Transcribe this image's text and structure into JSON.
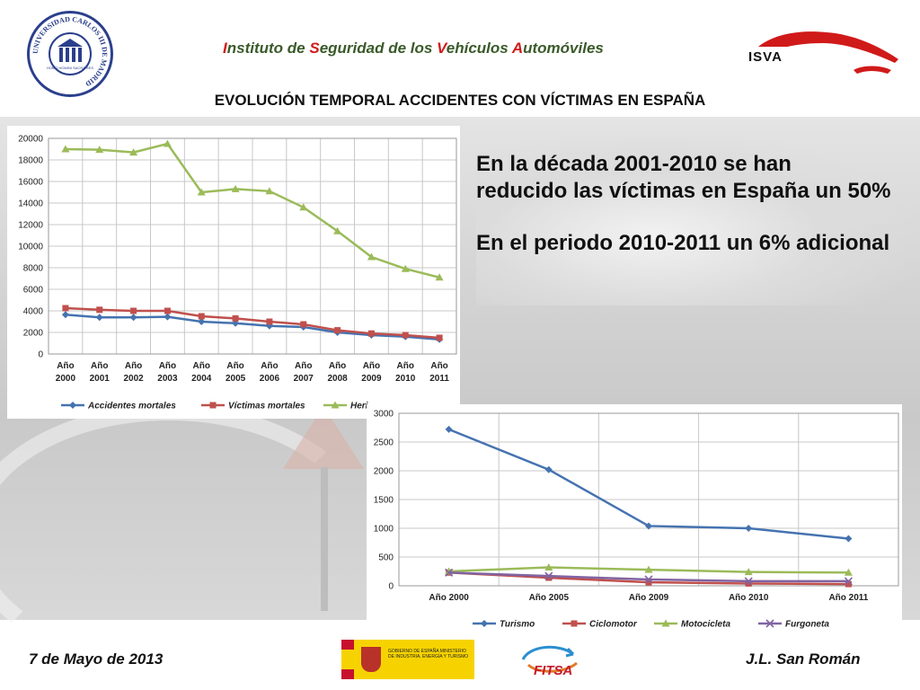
{
  "header": {
    "institute_parts": [
      {
        "text": "I",
        "hl": true
      },
      {
        "text": "nstituto de ",
        "hl": false
      },
      {
        "text": "S",
        "hl": true
      },
      {
        "text": "eguridad de los ",
        "hl": false
      },
      {
        "text": "V",
        "hl": true
      },
      {
        "text": "ehículos ",
        "hl": false
      },
      {
        "text": "A",
        "hl": true
      },
      {
        "text": "utomóviles",
        "hl": false
      }
    ],
    "isva_logo_text": "ISVA",
    "uc3m_ring_text": "UNIVERSIDAD CARLOS III DE MADRID",
    "uc3m_motto": "HOMO HOMINI SACRA RES"
  },
  "main_title": "EVOLUCIÓN TEMPORAL ACCIDENTES CON VÍCTIMAS EN ESPAÑA",
  "message": {
    "line1": "En la década 2001-2010 se han",
    "line2": "reducido las víctimas en España un 50%",
    "line3": "En el periodo 2010-2011 un 6% adicional"
  },
  "footer": {
    "date": "7 de Mayo de 2013",
    "author": "J.L. San Román",
    "gob_text": "GOBIERNO DE ESPAÑA  MINISTERIO DE INDUSTRIA, ENERGÍA Y TURISMO",
    "fitsa_text": "FITSA"
  },
  "colors": {
    "blue": "#4573b0",
    "red": "#c0504d",
    "green": "#9bbb59",
    "purple": "#8064a2",
    "accent": "#d01a1a"
  },
  "chart_data": [
    {
      "type": "line",
      "categories": [
        "Año 2000",
        "Año 2001",
        "Año 2002",
        "Año 2003",
        "Año 2004",
        "Año 2005",
        "Año 2006",
        "Año 2007",
        "Año 2008",
        "Año 2009",
        "Año 2010",
        "Año 2011"
      ],
      "ylim": [
        0,
        20000
      ],
      "yticks": [
        0,
        2000,
        4000,
        6000,
        8000,
        10000,
        12000,
        14000,
        16000,
        18000,
        20000
      ],
      "grid": true,
      "legend": "bottom",
      "series": [
        {
          "name": "Accidentes mortales",
          "color": "#4573b0",
          "marker": "diamond",
          "values": [
            3650,
            3400,
            3400,
            3450,
            3000,
            2850,
            2600,
            2500,
            2000,
            1750,
            1600,
            1350
          ]
        },
        {
          "name": "Víctimas mortales",
          "color": "#c0504d",
          "marker": "square",
          "values": [
            4250,
            4100,
            4000,
            4000,
            3500,
            3300,
            3000,
            2750,
            2200,
            1900,
            1750,
            1500
          ]
        },
        {
          "name": "Heri",
          "color": "#9bbb59",
          "marker": "triangle",
          "values": [
            19000,
            18950,
            18700,
            19500,
            15000,
            15300,
            15100,
            13600,
            11400,
            9000,
            7900,
            7100
          ]
        }
      ]
    },
    {
      "type": "line",
      "categories": [
        "Año 2000",
        "Año 2005",
        "Año 2009",
        "Año 2010",
        "Año 2011"
      ],
      "ylim": [
        0,
        3000
      ],
      "yticks": [
        0,
        500,
        1000,
        1500,
        2000,
        2500,
        3000
      ],
      "grid": true,
      "legend": "bottom",
      "series": [
        {
          "name": "Turismo",
          "color": "#4573b0",
          "marker": "diamond",
          "values": [
            2720,
            2020,
            1040,
            1000,
            820
          ]
        },
        {
          "name": "Ciclomotor",
          "color": "#c0504d",
          "marker": "square",
          "values": [
            230,
            140,
            60,
            40,
            30
          ]
        },
        {
          "name": "Motocicleta",
          "color": "#9bbb59",
          "marker": "triangle",
          "values": [
            250,
            320,
            280,
            240,
            230
          ]
        },
        {
          "name": "Furgoneta",
          "color": "#8064a2",
          "marker": "x",
          "values": [
            230,
            170,
            110,
            80,
            80
          ]
        }
      ]
    }
  ]
}
